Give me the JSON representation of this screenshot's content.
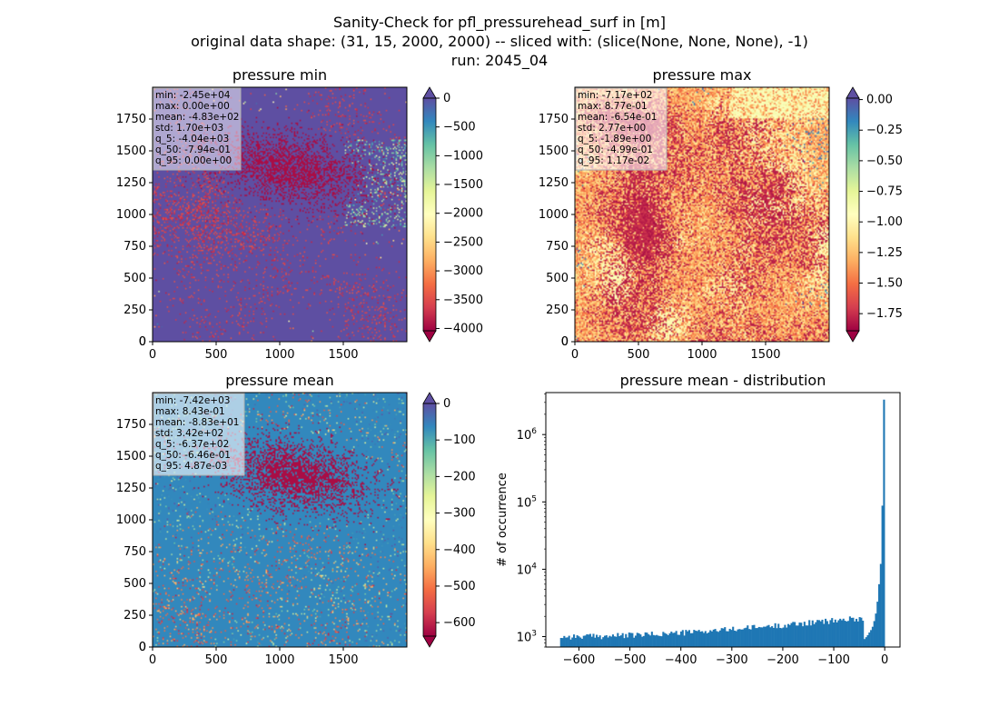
{
  "suptitle": {
    "line1": "Sanity-Check for pfl_pressurehead_surf in [m]",
    "line2": "original data shape: (31, 15, 2000, 2000) -- sliced with: (slice(None, None, None), -1)",
    "line3": "run: 2045_04"
  },
  "colors": {
    "spectral": [
      "#9e0142",
      "#d53e4f",
      "#f46d43",
      "#fdae61",
      "#fee08b",
      "#ffffbf",
      "#e6f598",
      "#abdda4",
      "#66c2a5",
      "#3288bd",
      "#5e4fa2"
    ],
    "histogram_bar": "#1f77b4"
  },
  "chart_data": [
    {
      "type": "heatmap",
      "title": "pressure min",
      "x_range": [
        0,
        2000
      ],
      "y_range": [
        0,
        2000
      ],
      "x_ticks": [
        0,
        500,
        1000,
        1500
      ],
      "y_ticks": [
        0,
        250,
        500,
        750,
        1000,
        1250,
        1500,
        1750
      ],
      "colorbar": {
        "range": [
          -4040,
          0
        ],
        "ticks": [
          0,
          -500,
          -1000,
          -1500,
          -2000,
          -2500,
          -3000,
          -3500,
          -4000
        ],
        "extend": "both"
      },
      "stats": [
        "min: -2.45e+04",
        "max: 0.00e+00",
        "mean: -4.83e+02",
        "std: 1.70e+03",
        "q_5: -4.04e+03",
        "q_50: -7.94e-01",
        "q_95: 0.00e+00"
      ]
    },
    {
      "type": "heatmap",
      "title": "pressure max",
      "x_range": [
        0,
        2000
      ],
      "y_range": [
        0,
        2000
      ],
      "x_ticks": [
        0,
        500,
        1000,
        1500
      ],
      "y_ticks": [
        0,
        250,
        500,
        750,
        1000,
        1250,
        1500,
        1750
      ],
      "colorbar": {
        "range": [
          -1.89,
          0.0117
        ],
        "ticks": [
          0.0,
          -0.25,
          -0.5,
          -0.75,
          -1.0,
          -1.25,
          -1.5,
          -1.75
        ],
        "tick_labels": [
          "0.00",
          "−0.25",
          "−0.50",
          "−0.75",
          "−1.00",
          "−1.25",
          "−1.50",
          "−1.75"
        ],
        "extend": "both"
      },
      "stats": [
        "min: -7.17e+02",
        "max: 8.77e-01",
        "mean: -6.54e-01",
        "std: 2.77e+00",
        "q_5: -1.89e+00",
        "q_50: -4.99e-01",
        "q_95: 1.17e-02"
      ]
    },
    {
      "type": "heatmap",
      "title": "pressure mean",
      "x_range": [
        0,
        2000
      ],
      "y_range": [
        0,
        2000
      ],
      "x_ticks": [
        0,
        500,
        1000,
        1500
      ],
      "y_ticks": [
        0,
        250,
        500,
        750,
        1000,
        1250,
        1500,
        1750
      ],
      "colorbar": {
        "range": [
          -637,
          0.00487
        ],
        "ticks": [
          0,
          -100,
          -200,
          -300,
          -400,
          -500,
          -600
        ],
        "extend": "both"
      },
      "stats": [
        "min: -7.42e+03",
        "max: 8.43e-01",
        "mean: -8.83e+01",
        "std: 3.42e+02",
        "q_5: -6.37e+02",
        "q_50: -6.46e-01",
        "q_95: 4.87e-03"
      ]
    },
    {
      "type": "bar",
      "title": "pressure mean - distribution",
      "ylabel": "# of occurrence",
      "xlabel": "",
      "xlim": [
        -665,
        30
      ],
      "ylim_log": [
        700,
        4200000
      ],
      "yscale": "log",
      "x_ticks": [
        -600,
        -500,
        -400,
        -300,
        -200,
        -100,
        0
      ],
      "y_ticks": [
        1000,
        10000,
        100000,
        1000000
      ],
      "y_tick_exponents": [
        "3",
        "4",
        "5",
        "6"
      ],
      "bin_range": [
        -637,
        0
      ],
      "tail_counts": [
        920,
        980,
        1050,
        1150,
        1250,
        1400,
        1700,
        2200,
        3300,
        6000,
        12000,
        88000,
        3300000
      ]
    }
  ]
}
